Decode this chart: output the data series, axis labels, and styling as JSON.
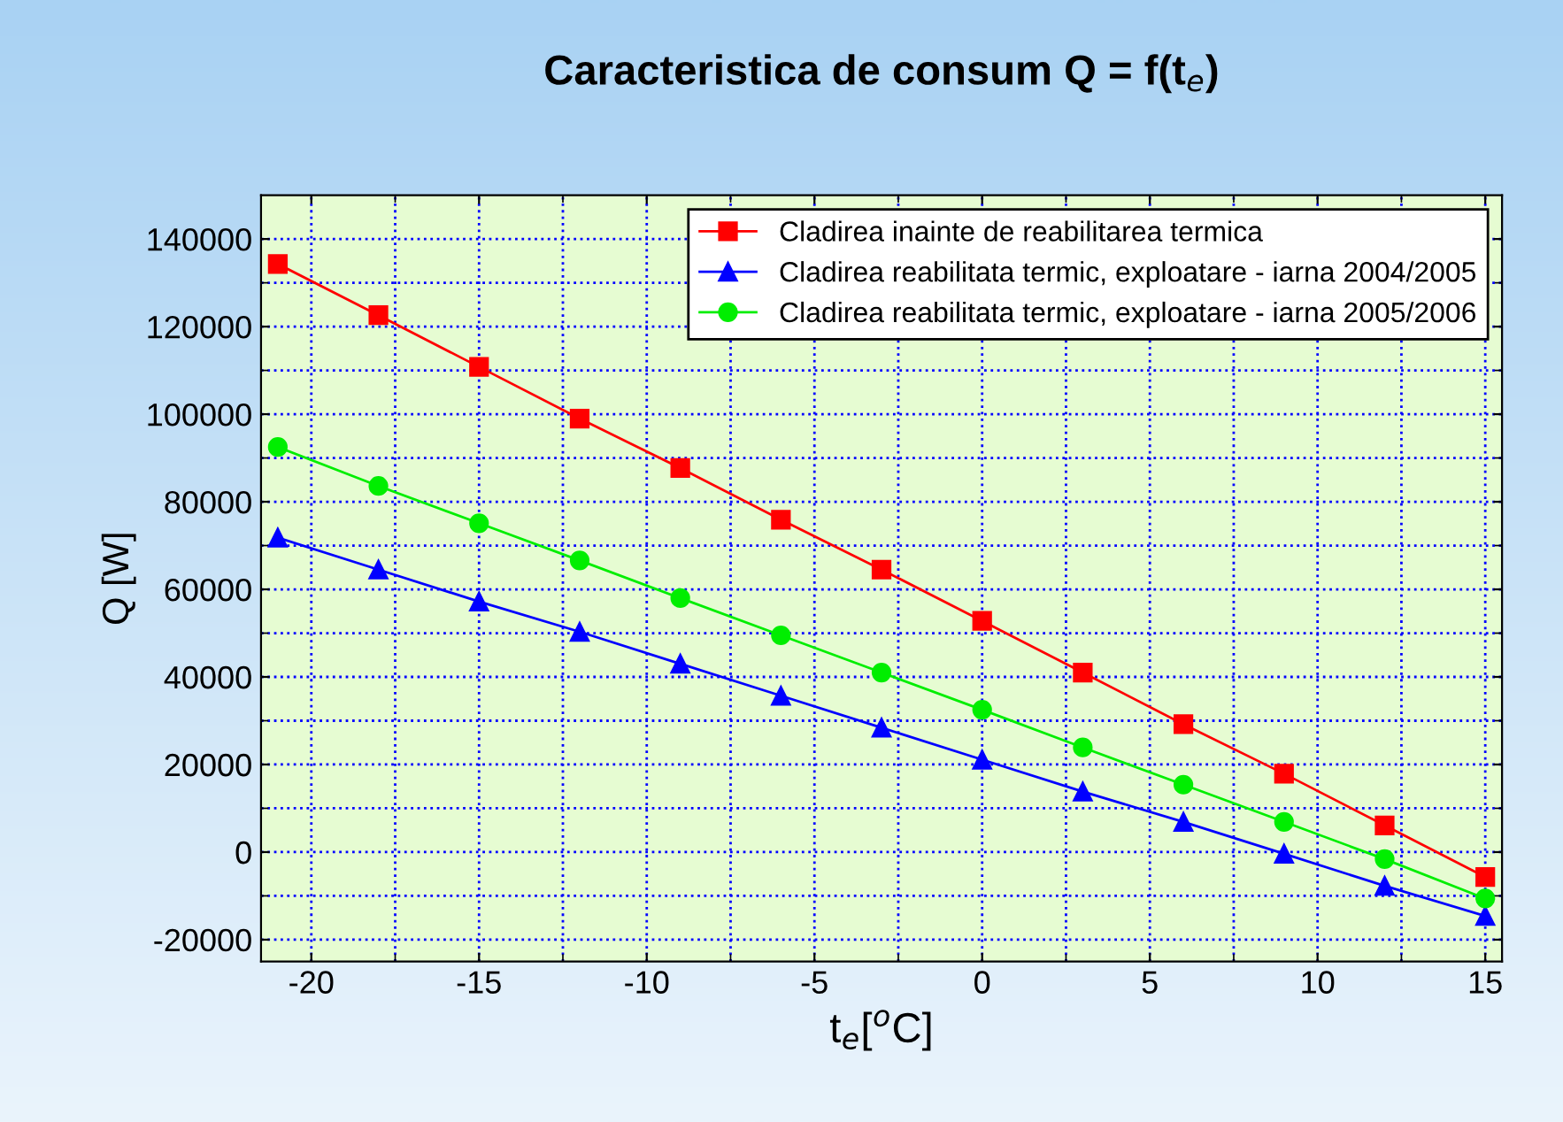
{
  "chart_data": {
    "type": "line",
    "title": "Caracteristica de consum Q = f(t$_{e}$)",
    "xlabel": "t$_{e}$[$^{o}$C]",
    "ylabel": "Q [W]",
    "x": [
      -21,
      -18,
      -15,
      -12,
      -9,
      -6,
      -3,
      0,
      3,
      6,
      9,
      12,
      15
    ],
    "series": [
      {
        "name": "Cladirea inainte de reabilitarea termica",
        "color": "#ff0000",
        "marker": "square",
        "values": [
          134300,
          122600,
          110800,
          99000,
          87700,
          75900,
          64500,
          52800,
          41000,
          29200,
          17900,
          6100,
          -5700
        ]
      },
      {
        "name": "Cladirea reabilitata termic, exploatare - iarna 2004/2005",
        "color": "#0000ff",
        "marker": "triangle",
        "values": [
          71800,
          64500,
          57200,
          50300,
          43000,
          35700,
          28400,
          21100,
          13800,
          6900,
          -400,
          -7700,
          -14600
        ]
      },
      {
        "name": "Cladirea reabilitata termic, exploatare - iarna 2005/2006",
        "color": "#00ee00",
        "marker": "circle",
        "values": [
          92500,
          83600,
          75100,
          66600,
          58000,
          49500,
          41000,
          32500,
          23900,
          15400,
          6900,
          -1600,
          -10600
        ]
      }
    ],
    "xlim": [
      -21.5,
      15.5
    ],
    "ylim": [
      -25000,
      150000
    ],
    "xticks": [
      -20,
      -15,
      -10,
      -5,
      0,
      5,
      10,
      15
    ],
    "yticks": [
      -20000,
      0,
      20000,
      40000,
      60000,
      80000,
      100000,
      120000,
      140000
    ],
    "grid": true,
    "legend": "top right",
    "line_style": "solid"
  }
}
